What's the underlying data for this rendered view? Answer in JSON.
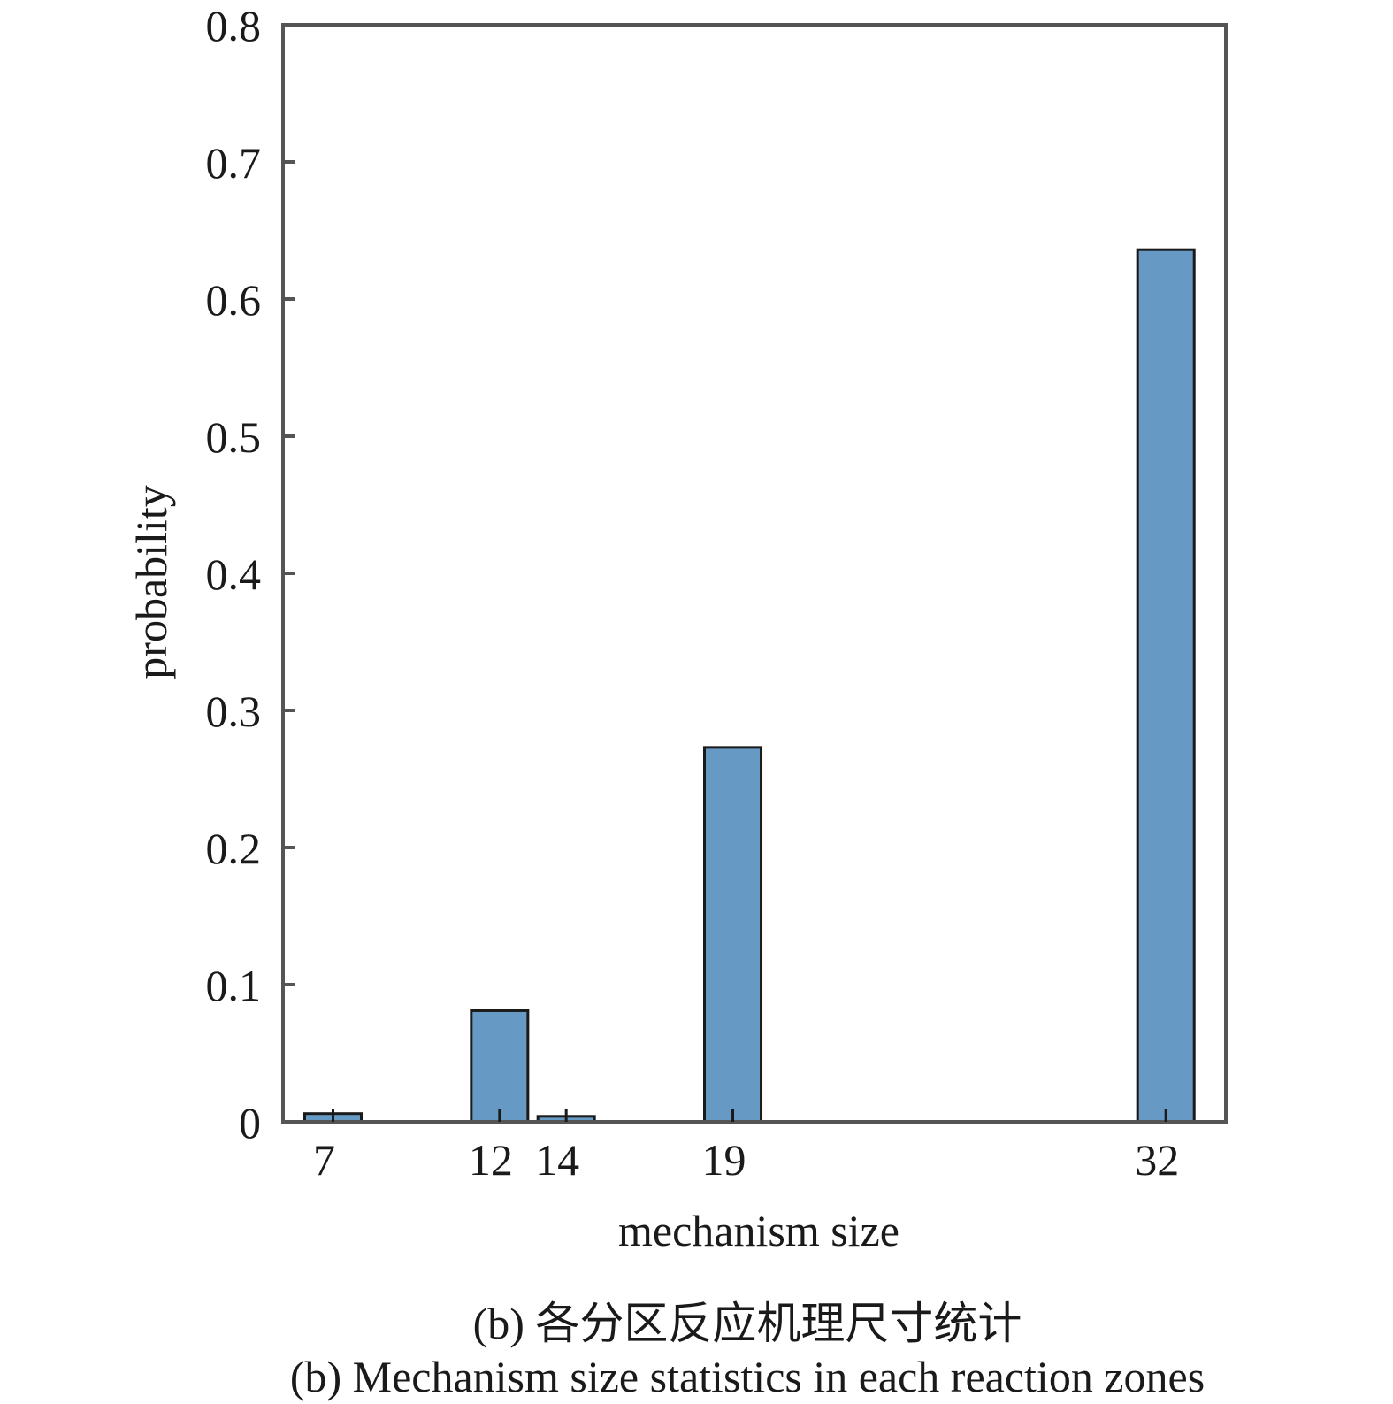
{
  "chart_data": {
    "type": "bar",
    "title": "",
    "xlabel": "mechanism size",
    "ylabel": "probability",
    "categories": [
      "7",
      "12",
      "14",
      "19",
      "32"
    ],
    "x": [
      7,
      12,
      14,
      19,
      32
    ],
    "values": [
      0.006,
      0.081,
      0.004,
      0.273,
      0.636
    ],
    "ylim": [
      0,
      0.8
    ],
    "xlim": [
      5.5,
      33.8
    ],
    "yticks": [
      0,
      0.1,
      0.2,
      0.3,
      0.4,
      0.5,
      0.6,
      0.7,
      0.8
    ],
    "ytick_labels": [
      "0",
      "0.1",
      "0.2",
      "0.3",
      "0.4",
      "0.5",
      "0.6",
      "0.7",
      "0.8"
    ],
    "xticks": [
      7,
      12,
      14,
      19,
      32
    ],
    "xtick_labels": [
      "7",
      "12",
      "14",
      "19",
      "32"
    ],
    "grid": false,
    "legend": null,
    "bar_color": "#6699c4",
    "bar_edge_color": "#1a1a1a",
    "bar_width_units": 1.7
  },
  "captions": {
    "chinese": "(b) 各分区反应机理尺寸统计",
    "english": "(b) Mechanism size statistics in each reaction zones"
  }
}
